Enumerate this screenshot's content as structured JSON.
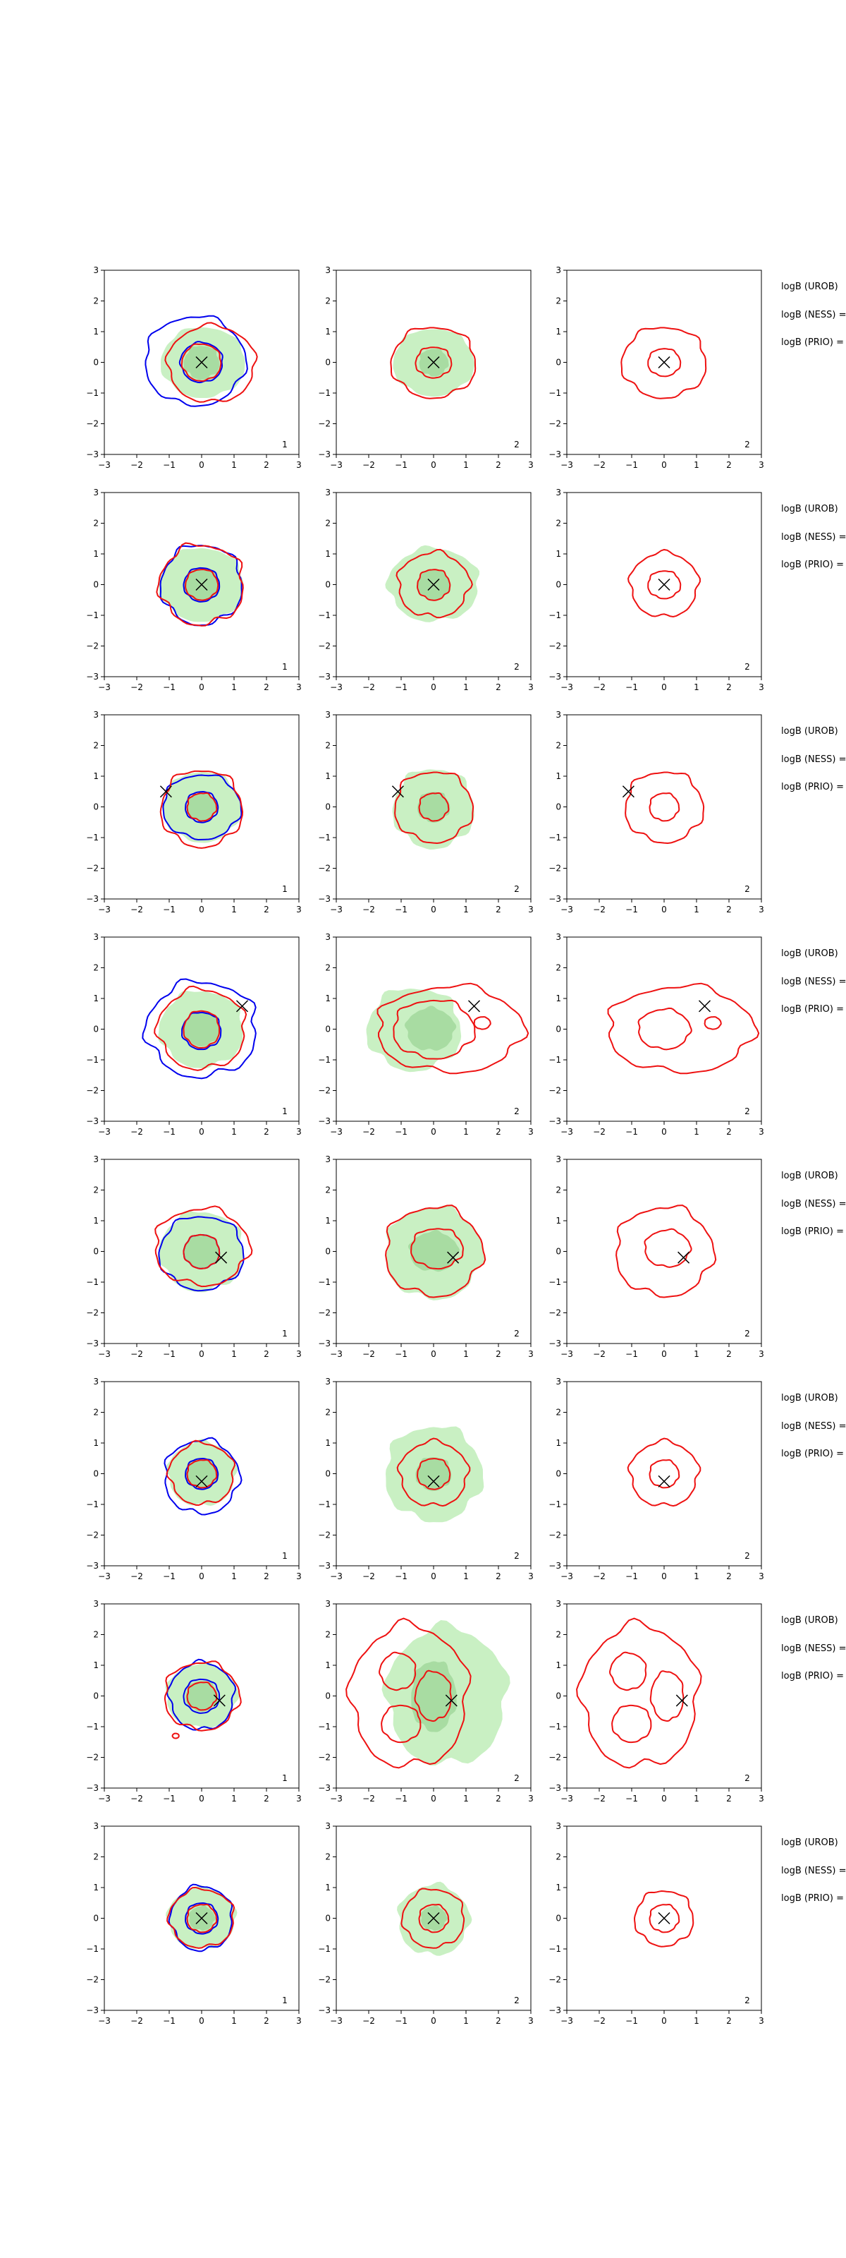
{
  "chart_data": {
    "type": "contour-grid",
    "layout": {
      "rows": 8,
      "cols": 3
    },
    "axis": {
      "xlim": [
        -3,
        3
      ],
      "ylim": [
        -3,
        3
      ],
      "xticks": [
        -3,
        -2,
        -1,
        0,
        1,
        2,
        3
      ],
      "yticks": [
        -3,
        -2,
        -1,
        0,
        1,
        2,
        3
      ]
    },
    "panel_labels": [
      "1",
      "2",
      "2"
    ],
    "side_labels": [
      "logB (UROB)",
      "logB (NESS) =",
      "logB (PRIO) ="
    ],
    "colors": {
      "reference_fill": "#c9f0c3",
      "reference_inner": "#a8dca2",
      "red_contour": "#ee1111",
      "blue_contour": "#0000ee",
      "marker": "#000000",
      "axis": "#000000"
    },
    "rows": [
      {
        "marker": [
          0.0,
          0.0
        ],
        "panels": [
          {
            "fill": [
              [
                0.05,
                0,
                1.3,
                1.15,
                0.3
              ],
              [
                0,
                0,
                0.55,
                0.55,
                0.55
              ]
            ],
            "red": [
              [
                0.3,
                -0.05,
                1.35,
                1.25,
                0.4
              ],
              [
                0,
                0,
                0.6,
                0.6,
                0.3
              ]
            ],
            "blue": [
              [
                -0.2,
                0.05,
                1.55,
                1.45,
                0.4
              ],
              [
                0,
                0,
                0.65,
                0.65,
                0.3
              ]
            ]
          },
          {
            "fill": [
              [
                0,
                0,
                1.25,
                1.1,
                0.3
              ],
              [
                0,
                0,
                0.45,
                0.45,
                0.5
              ]
            ],
            "red": [
              [
                0,
                0,
                1.3,
                1.15,
                0.45
              ],
              [
                0,
                0,
                0.55,
                0.5,
                0.4
              ]
            ],
            "blue": []
          },
          {
            "fill": [],
            "red": [
              [
                0,
                0,
                1.3,
                1.15,
                0.45
              ],
              [
                0,
                0,
                0.5,
                0.45,
                0.3
              ]
            ],
            "blue": []
          }
        ]
      },
      {
        "marker": [
          0.0,
          0.0
        ],
        "panels": [
          {
            "fill": [
              [
                0,
                0,
                1.3,
                1.2,
                0.35
              ],
              [
                0,
                0,
                0.55,
                0.55,
                0.5
              ]
            ],
            "red": [
              [
                0,
                0,
                1.3,
                1.3,
                0.6
              ],
              [
                0,
                0,
                0.5,
                0.5,
                0.3
              ]
            ],
            "blue": [
              [
                0,
                0,
                1.25,
                1.3,
                0.5
              ],
              [
                0,
                0,
                0.55,
                0.55,
                0.3
              ]
            ]
          },
          {
            "fill": [
              [
                0,
                0,
                1.4,
                1.2,
                0.45
              ],
              [
                0,
                0,
                0.5,
                0.5,
                0.5
              ]
            ],
            "red": [
              [
                0,
                0,
                1.1,
                1.05,
                0.55
              ],
              [
                0,
                0,
                0.5,
                0.5,
                0.4
              ]
            ],
            "blue": []
          },
          {
            "fill": [],
            "red": [
              [
                0,
                0,
                1.05,
                1.05,
                0.45
              ],
              [
                0,
                0,
                0.5,
                0.45,
                0.35
              ]
            ],
            "blue": []
          }
        ]
      },
      {
        "marker": [
          -1.1,
          0.5
        ],
        "panels": [
          {
            "fill": [
              [
                0,
                0,
                1.2,
                1.15,
                0.35
              ],
              [
                0,
                0,
                0.45,
                0.45,
                0.5
              ]
            ],
            "red": [
              [
                0,
                -0.05,
                1.25,
                1.25,
                0.5
              ],
              [
                0,
                0,
                0.45,
                0.45,
                0.4
              ]
            ],
            "blue": [
              [
                0,
                0,
                1.2,
                1.05,
                0.4
              ],
              [
                0,
                0,
                0.5,
                0.5,
                0.3
              ]
            ]
          },
          {
            "fill": [
              [
                0,
                -0.05,
                1.25,
                1.3,
                0.5
              ],
              [
                0,
                0,
                0.5,
                0.5,
                0.5
              ]
            ],
            "red": [
              [
                0,
                0,
                1.2,
                1.15,
                0.5
              ],
              [
                0,
                0,
                0.45,
                0.45,
                0.4
              ]
            ],
            "blue": []
          },
          {
            "fill": [],
            "red": [
              [
                0,
                0,
                1.2,
                1.15,
                0.5
              ],
              [
                0,
                0,
                0.45,
                0.45,
                0.35
              ]
            ],
            "blue": []
          }
        ]
      },
      {
        "marker": [
          1.25,
          0.75
        ],
        "panels": [
          {
            "fill": [
              [
                0,
                0,
                1.3,
                1.25,
                0.45
              ],
              [
                0,
                0,
                0.55,
                0.55,
                0.5
              ]
            ],
            "red": [
              [
                0,
                0,
                1.35,
                1.3,
                0.55
              ],
              [
                0,
                0,
                0.55,
                0.6,
                0.35
              ]
            ],
            "blue": [
              [
                0,
                0,
                1.7,
                1.55,
                0.6
              ],
              [
                0,
                -0.05,
                0.6,
                0.6,
                0.4
              ]
            ]
          },
          {
            "fill": [
              [
                -0.6,
                0,
                1.45,
                1.35,
                0.55
              ],
              [
                -0.1,
                0,
                0.75,
                0.7,
                0.5
              ]
            ],
            "red": [
              [
                0.5,
                0,
                2.25,
                1.4,
                0.55
              ],
              [
                0,
                0,
                1.25,
                0.95,
                0.5
              ],
              [
                1.5,
                0.2,
                0.25,
                0.2,
                0.2
              ]
            ],
            "blue": []
          },
          {
            "fill": [],
            "red": [
              [
                0.5,
                0,
                2.25,
                1.4,
                0.55
              ],
              [
                0,
                0,
                0.8,
                0.65,
                0.4
              ],
              [
                1.5,
                0.2,
                0.25,
                0.2,
                0.2
              ]
            ],
            "blue": []
          }
        ]
      },
      {
        "marker": [
          0.6,
          -0.2
        ],
        "panels": [
          {
            "fill": [
              [
                0,
                0,
                1.3,
                1.3,
                0.45
              ],
              [
                0,
                0,
                0.55,
                0.55,
                0.5
              ]
            ],
            "red": [
              [
                0,
                0.15,
                1.45,
                1.25,
                0.55
              ],
              [
                0,
                0,
                0.55,
                0.55,
                0.35
              ]
            ],
            "blue": [
              [
                0,
                -0.05,
                1.3,
                1.2,
                0.45
              ],
              [
                0,
                0,
                0.55,
                0.55,
                0.3
              ]
            ]
          },
          {
            "fill": [
              [
                0,
                -0.05,
                1.5,
                1.5,
                0.5
              ],
              [
                0,
                0,
                0.75,
                0.65,
                0.5
              ]
            ],
            "red": [
              [
                0,
                0,
                1.5,
                1.45,
                0.55
              ],
              [
                0.1,
                0.1,
                0.8,
                0.65,
                0.45
              ]
            ],
            "blue": []
          },
          {
            "fill": [],
            "red": [
              [
                0,
                0,
                1.5,
                1.45,
                0.55
              ],
              [
                0.1,
                0.1,
                0.7,
                0.6,
                0.4
              ]
            ],
            "blue": []
          }
        ]
      },
      {
        "marker": [
          0.0,
          -0.25
        ],
        "panels": [
          {
            "fill": [
              [
                0,
                0,
                1.05,
                1.05,
                0.45
              ],
              [
                0,
                0,
                0.5,
                0.5,
                0.5
              ]
            ],
            "red": [
              [
                0,
                0,
                1.0,
                1.0,
                0.5
              ],
              [
                0,
                0,
                0.45,
                0.45,
                0.35
              ]
            ],
            "blue": [
              [
                0,
                -0.1,
                1.15,
                1.2,
                0.5
              ],
              [
                0,
                0,
                0.5,
                0.5,
                0.3
              ]
            ]
          },
          {
            "fill": [
              [
                0,
                0,
                1.5,
                1.55,
                0.55
              ],
              [
                0,
                0,
                0.55,
                0.55,
                0.5
              ]
            ],
            "red": [
              [
                0,
                0,
                1.05,
                1.05,
                0.5
              ],
              [
                0,
                0,
                0.5,
                0.5,
                0.35
              ]
            ],
            "blue": []
          },
          {
            "fill": [],
            "red": [
              [
                0,
                0,
                1.05,
                1.05,
                0.5
              ],
              [
                0,
                0,
                0.45,
                0.45,
                0.35
              ]
            ],
            "blue": []
          }
        ]
      },
      {
        "marker": [
          0.55,
          -0.15
        ],
        "panels": [
          {
            "fill": [
              [
                0,
                0,
                1.1,
                1.05,
                0.4
              ],
              [
                0,
                0,
                0.5,
                0.5,
                0.5
              ]
            ],
            "red": [
              [
                0,
                0,
                1.15,
                1.1,
                0.5
              ],
              [
                0,
                0,
                0.45,
                0.45,
                0.35
              ],
              [
                -0.8,
                -1.3,
                0.1,
                0.08,
                0.1
              ]
            ],
            "blue": [
              [
                0,
                0,
                1.0,
                1.1,
                0.45
              ],
              [
                0,
                0,
                0.55,
                0.55,
                0.3
              ]
            ]
          },
          {
            "fill": [
              [
                0.4,
                0,
                1.85,
                2.25,
                0.55
              ],
              [
                0,
                0,
                0.7,
                1.15,
                0.5
              ]
            ],
            "red": [
              [
                -0.75,
                0,
                1.8,
                2.3,
                0.55
              ],
              [
                0,
                0,
                0.55,
                0.8,
                0.4
              ],
              [
                -1.1,
                0.8,
                0.55,
                0.6,
                0.3
              ],
              [
                -1.0,
                -0.9,
                0.6,
                0.6,
                0.3
              ]
            ],
            "blue": []
          },
          {
            "fill": [],
            "red": [
              [
                -0.75,
                0,
                1.8,
                2.3,
                0.55
              ],
              [
                0.1,
                0,
                0.5,
                0.8,
                0.35
              ],
              [
                -1.1,
                0.8,
                0.55,
                0.6,
                0.3
              ],
              [
                -1.0,
                -0.9,
                0.6,
                0.6,
                0.3
              ]
            ],
            "blue": []
          }
        ]
      },
      {
        "marker": [
          0.0,
          0.0
        ],
        "panels": [
          {
            "fill": [
              [
                0,
                0,
                1.05,
                1.0,
                0.4
              ],
              [
                0,
                0,
                0.4,
                0.4,
                0.5
              ]
            ],
            "red": [
              [
                0,
                0,
                1.0,
                0.95,
                0.45
              ],
              [
                0,
                0,
                0.45,
                0.45,
                0.35
              ]
            ],
            "blue": [
              [
                0,
                0,
                0.95,
                1.05,
                0.45
              ],
              [
                0,
                0,
                0.5,
                0.5,
                0.3
              ]
            ]
          },
          {
            "fill": [
              [
                0,
                -0.05,
                1.1,
                1.15,
                0.5
              ],
              [
                0,
                0,
                0.4,
                0.4,
                0.5
              ]
            ],
            "red": [
              [
                0,
                0,
                0.95,
                0.95,
                0.45
              ],
              [
                0,
                0,
                0.45,
                0.45,
                0.35
              ]
            ],
            "blue": []
          },
          {
            "fill": [],
            "red": [
              [
                0,
                0,
                0.9,
                0.9,
                0.45
              ],
              [
                0,
                0,
                0.45,
                0.45,
                0.35
              ]
            ],
            "blue": []
          }
        ]
      }
    ]
  }
}
